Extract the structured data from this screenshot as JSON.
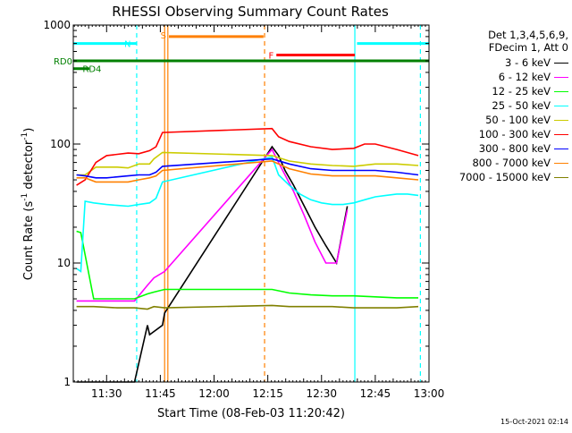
{
  "chart_data": {
    "type": "line",
    "title": "RHESSI Observing Summary Count Rates",
    "xlabel": "Start Time (08-Feb-03 11:20:42)",
    "ylabel": "Count Rate (s",
    "ylabel_sup1": "-1",
    "ylabel_mid": " detector",
    "ylabel_sup2": "-1",
    "ylabel_end": ")",
    "y_scale": "log",
    "ylim": [
      1,
      1000
    ],
    "xlim": [
      11.345,
      13.0
    ],
    "y_ticks": [
      {
        "value": 1,
        "label": "1"
      },
      {
        "value": 10,
        "label": "10"
      },
      {
        "value": 100,
        "label": "100"
      },
      {
        "value": 1000,
        "label": "1000"
      }
    ],
    "x_ticks": [
      {
        "value": 11.5,
        "label": "11:30"
      },
      {
        "value": 11.75,
        "label": "11:45"
      },
      {
        "value": 12.0,
        "label": "12:00"
      },
      {
        "value": 12.25,
        "label": "12:15"
      },
      {
        "value": 12.5,
        "label": "12:30"
      },
      {
        "value": 12.75,
        "label": "12:45"
      },
      {
        "value": 13.0,
        "label": "13:00"
      }
    ],
    "legend_header": [
      "Det 1,3,4,5,6,9,",
      "FDecim 1, Att 0"
    ],
    "legend_placement": "right",
    "series": [
      {
        "name": "3 - 6 keV",
        "color": "#000000",
        "x": [
          11.36,
          11.44,
          11.55,
          11.63,
          11.69,
          11.7,
          11.76,
          11.77,
          12.27,
          12.3,
          12.33,
          12.37,
          12.42,
          12.47,
          12.52,
          12.57,
          12.62
        ],
        "y": [
          1.0,
          1.0,
          1.0,
          1.0,
          3.0,
          2.5,
          3.0,
          3.8,
          95,
          80,
          60,
          45,
          30,
          20,
          14,
          10,
          30
        ]
      },
      {
        "name": "6 - 12 keV",
        "color": "#ff00ff",
        "x": [
          11.36,
          11.44,
          11.55,
          11.63,
          11.69,
          11.72,
          11.77,
          12.27,
          12.3,
          12.33,
          12.37,
          12.42,
          12.47,
          12.52,
          12.57,
          12.62
        ],
        "y": [
          4.8,
          4.8,
          4.8,
          4.8,
          6.5,
          7.5,
          8.5,
          90,
          70,
          55,
          40,
          25,
          15,
          10,
          10,
          28
        ]
      },
      {
        "name": "12 - 25 keV",
        "color": "#00ff00",
        "x": [
          11.36,
          11.38,
          11.44,
          11.55,
          11.63,
          11.69,
          11.72,
          11.77,
          12.27,
          12.35,
          12.45,
          12.55,
          12.65,
          12.75,
          12.85,
          12.95
        ],
        "y": [
          18.5,
          18,
          5.0,
          5.0,
          5.0,
          5.5,
          5.7,
          6.0,
          6.0,
          5.6,
          5.4,
          5.3,
          5.3,
          5.2,
          5.1,
          5.1
        ]
      },
      {
        "name": "25 - 50 keV",
        "color": "#00ffff",
        "x": [
          11.36,
          11.38,
          11.4,
          11.44,
          11.5,
          11.55,
          11.6,
          11.65,
          11.7,
          11.73,
          11.76,
          12.27,
          12.3,
          12.35,
          12.4,
          12.45,
          12.5,
          12.55,
          12.6,
          12.65,
          12.7,
          12.75,
          12.8,
          12.85,
          12.9,
          12.95
        ],
        "y": [
          9.0,
          8.5,
          33,
          32,
          31,
          30.5,
          30,
          31,
          32,
          35,
          48,
          78,
          55,
          45,
          38,
          34,
          32,
          31,
          31,
          32,
          34,
          36,
          37,
          38,
          38,
          37
        ]
      },
      {
        "name": "50 - 100 keV",
        "color": "#cccc00",
        "x": [
          11.36,
          11.4,
          11.45,
          11.5,
          11.55,
          11.6,
          11.65,
          11.7,
          11.72,
          11.76,
          12.27,
          12.35,
          12.45,
          12.55,
          12.65,
          12.75,
          12.85,
          12.95
        ],
        "y": [
          55,
          55,
          64,
          64,
          64,
          63,
          68,
          68,
          75,
          85,
          80,
          72,
          68,
          66,
          65,
          68,
          68,
          66
        ]
      },
      {
        "name": "100 - 300 keV",
        "color": "#ff0000",
        "x": [
          11.36,
          11.4,
          11.45,
          11.5,
          11.55,
          11.6,
          11.65,
          11.7,
          11.73,
          11.76,
          12.27,
          12.3,
          12.35,
          12.45,
          12.55,
          12.65,
          12.7,
          12.75,
          12.85,
          12.95
        ],
        "y": [
          45,
          50,
          70,
          80,
          82,
          84,
          83,
          88,
          95,
          125,
          135,
          115,
          105,
          95,
          90,
          92,
          100,
          100,
          90,
          80
        ]
      },
      {
        "name": "300 - 800 keV",
        "color": "#0000ff",
        "x": [
          11.36,
          11.4,
          11.45,
          11.5,
          11.55,
          11.6,
          11.65,
          11.7,
          11.73,
          11.76,
          12.27,
          12.35,
          12.45,
          12.55,
          12.65,
          12.75,
          12.85,
          12.95
        ],
        "y": [
          55,
          54,
          52,
          52,
          53,
          54,
          55,
          55,
          58,
          65,
          75,
          68,
          62,
          60,
          60,
          60,
          58,
          55
        ]
      },
      {
        "name": "800 - 7000 keV",
        "color": "#ff8000",
        "x": [
          11.36,
          11.4,
          11.45,
          11.5,
          11.55,
          11.6,
          11.65,
          11.7,
          11.73,
          11.76,
          12.27,
          12.35,
          12.45,
          12.55,
          12.65,
          12.75,
          12.85,
          12.95
        ],
        "y": [
          52,
          52,
          48,
          48,
          48,
          48,
          50,
          52,
          54,
          60,
          72,
          62,
          56,
          54,
          54,
          54,
          52,
          50
        ]
      },
      {
        "name": "7000 - 15000 keV",
        "color": "#808000",
        "x": [
          11.36,
          11.44,
          11.55,
          11.63,
          11.69,
          11.72,
          11.77,
          12.27,
          12.35,
          12.45,
          12.55,
          12.65,
          12.75,
          12.85,
          12.95
        ],
        "y": [
          4.3,
          4.3,
          4.2,
          4.2,
          4.1,
          4.3,
          4.2,
          4.4,
          4.3,
          4.3,
          4.3,
          4.2,
          4.2,
          4.2,
          4.3
        ]
      }
    ],
    "flag_bars": [
      {
        "name": "N",
        "color": "#00ffff",
        "y": 700,
        "label": "N",
        "ranges": [
          [
            11.345,
            11.64
          ],
          [
            12.665,
            13.0
          ]
        ]
      },
      {
        "name": "S",
        "color": "#ff8000",
        "y": 800,
        "label": "S",
        "ranges": [
          [
            11.79,
            12.23
          ]
        ]
      },
      {
        "name": "F",
        "color": "#ff0000",
        "y": 560,
        "label": "F",
        "ranges": [
          [
            12.29,
            12.655
          ]
        ]
      },
      {
        "name": "RD0",
        "color": "#008000",
        "y": 500,
        "label": "RD0",
        "ranges": [
          [
            11.345,
            13.0
          ]
        ]
      },
      {
        "name": "RD4",
        "color": "#008000",
        "y": 430,
        "label": "RD4",
        "ranges": [
          [
            11.345,
            11.42
          ]
        ]
      }
    ],
    "vertical_markers": [
      {
        "x": 11.64,
        "color": "#00ffff",
        "style": "dashed"
      },
      {
        "x": 11.77,
        "color": "#ff8000",
        "style": "solid"
      },
      {
        "x": 11.785,
        "color": "#ff8000",
        "style": "solid"
      },
      {
        "x": 12.235,
        "color": "#ff8000",
        "style": "dashed"
      },
      {
        "x": 12.655,
        "color": "#00ffff",
        "style": "solid"
      },
      {
        "x": 12.96,
        "color": "#00ffff",
        "style": "dashed"
      }
    ]
  },
  "footer": {
    "timestamp": "15-Oct-2021 02:14"
  }
}
